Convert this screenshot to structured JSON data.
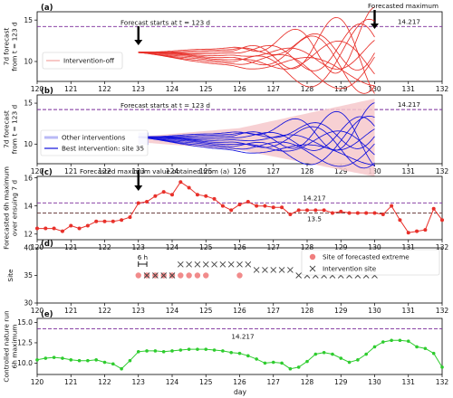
{
  "colors": {
    "red": "#e8302a",
    "red_light": "#f4a3a0",
    "blue": "#1111dd",
    "blue_light": "#b9baf6",
    "pink_band": "#f6c8cb",
    "green": "#2ecc2e",
    "purple_dash": "#7a2a9a",
    "brown_dash": "#5a2a2a",
    "marker_pink": "#f07e7e"
  },
  "x_axis": {
    "label": "day",
    "xlim": [
      120,
      132
    ],
    "ticks": [
      "120",
      "121",
      "122",
      "123",
      "124",
      "125",
      "126",
      "127",
      "128",
      "129",
      "130",
      "131",
      "132"
    ]
  },
  "annotations": {
    "forecast_start": "Forecast starts at t = 123 d",
    "forecasted_maximum": "Forecasted maximum",
    "max_value": "14.217",
    "panel_c_title": "Forecasted maximum value obtained from (a)",
    "mean_value": "13.5",
    "six_h": "6 h"
  },
  "chart_data": [
    {
      "panel": "(a)",
      "type": "line",
      "ylabel": "7d forecast from t = 123 d",
      "ylim": [
        7.6,
        16.0
      ],
      "yticks": [
        10,
        15
      ],
      "threshold": 14.217,
      "legend": [
        "Intervention-off"
      ],
      "x_start": 123,
      "x_end": 130,
      "ensemble_count": 10
    },
    {
      "panel": "(b)",
      "type": "line",
      "ylabel": "7d forecast from t = 123 d",
      "ylim": [
        7.6,
        16.0
      ],
      "yticks": [
        10,
        15
      ],
      "threshold": 14.217,
      "legend": [
        "Other interventions",
        "Best intervention: site 35"
      ],
      "x_start": 123,
      "x_end": 130,
      "ensemble_count": 10
    },
    {
      "panel": "(c)",
      "type": "line",
      "ylabel": "Forecasted 6h maximum over ensuing 7 d",
      "ylim": [
        11.6,
        16.1
      ],
      "yticks": [
        12,
        14,
        16
      ],
      "thresholds": [
        14.217,
        13.5
      ],
      "x": [
        120,
        120.25,
        120.5,
        120.75,
        121,
        121.25,
        121.5,
        121.75,
        122,
        122.25,
        122.5,
        122.75,
        123,
        123.25,
        123.5,
        123.75,
        124,
        124.25,
        124.5,
        124.75,
        125,
        125.25,
        125.5,
        125.75,
        126,
        126.25,
        126.5,
        126.75,
        127,
        127.25,
        127.5,
        127.75,
        128,
        128.25,
        128.5,
        128.75,
        129,
        129.25,
        129.5,
        129.75,
        130,
        130.25,
        130.5,
        130.75,
        131,
        131.25,
        131.5,
        131.75,
        132
      ],
      "y": [
        12.4,
        12.4,
        12.4,
        12.2,
        12.6,
        12.4,
        12.6,
        12.9,
        12.9,
        12.9,
        13.0,
        13.2,
        14.2,
        14.3,
        14.7,
        15.0,
        14.8,
        15.7,
        15.3,
        14.8,
        14.7,
        14.5,
        14.0,
        13.7,
        14.1,
        14.3,
        14.0,
        14.0,
        13.9,
        13.9,
        13.4,
        13.7,
        13.7,
        13.7,
        13.7,
        13.5,
        13.6,
        13.5,
        13.5,
        13.5,
        13.5,
        13.4,
        14.0,
        13.0,
        12.1,
        12.2,
        12.3,
        13.8,
        13.0
      ]
    },
    {
      "panel": "(d)",
      "type": "scatter",
      "ylabel": "Site",
      "ylim": [
        30,
        40
      ],
      "yticks": [
        30,
        35,
        40
      ],
      "legend": [
        "Site of forecasted extreme",
        "Intervention site"
      ],
      "extreme_sites": [
        [
          123,
          35
        ],
        [
          123.25,
          35
        ],
        [
          123.5,
          35
        ],
        [
          123.75,
          35
        ],
        [
          124,
          35
        ],
        [
          124.25,
          35
        ],
        [
          124.5,
          35
        ],
        [
          124.75,
          35
        ],
        [
          125,
          35
        ],
        [
          126,
          35
        ]
      ],
      "intervention_sites": [
        [
          123.25,
          35
        ],
        [
          123.5,
          35
        ],
        [
          123.75,
          35
        ],
        [
          124,
          35
        ],
        [
          124.25,
          37
        ],
        [
          124.5,
          37
        ],
        [
          124.75,
          37
        ],
        [
          125,
          37
        ],
        [
          125.25,
          37
        ],
        [
          125.5,
          37
        ],
        [
          125.75,
          37
        ],
        [
          126,
          37
        ],
        [
          126.25,
          37
        ],
        [
          126.5,
          36
        ],
        [
          126.75,
          36
        ],
        [
          127,
          36
        ],
        [
          127.25,
          36
        ],
        [
          127.5,
          36
        ],
        [
          127.75,
          35
        ],
        [
          128,
          35
        ],
        [
          128.25,
          35
        ],
        [
          128.5,
          35
        ],
        [
          128.75,
          35
        ],
        [
          129,
          35
        ],
        [
          129.25,
          35
        ],
        [
          129.5,
          35
        ],
        [
          129.75,
          35
        ],
        [
          130,
          35
        ]
      ]
    },
    {
      "panel": "(e)",
      "type": "line",
      "ylabel": "Controlled nature run 6h maximum",
      "ylim": [
        8.6,
        15.5
      ],
      "yticks": [
        "10.0",
        "12.5",
        "15.0"
      ],
      "threshold": 14.217,
      "x": [
        120,
        120.25,
        120.5,
        120.75,
        121,
        121.25,
        121.5,
        121.75,
        122,
        122.25,
        122.5,
        122.75,
        123,
        123.25,
        123.5,
        123.75,
        124,
        124.25,
        124.5,
        124.75,
        125,
        125.25,
        125.5,
        125.75,
        126,
        126.25,
        126.5,
        126.75,
        127,
        127.25,
        127.5,
        127.75,
        128,
        128.25,
        128.5,
        128.75,
        129,
        129.25,
        129.5,
        129.75,
        130,
        130.25,
        130.5,
        130.75,
        131,
        131.25,
        131.5,
        131.75,
        132
      ],
      "y": [
        10.4,
        10.6,
        10.7,
        10.6,
        10.4,
        10.3,
        10.3,
        10.4,
        10.1,
        9.9,
        9.3,
        10.3,
        11.4,
        11.5,
        11.5,
        11.4,
        11.5,
        11.6,
        11.7,
        11.7,
        11.7,
        11.6,
        11.5,
        11.3,
        11.2,
        10.9,
        10.5,
        10.0,
        10.1,
        10.0,
        9.3,
        9.5,
        10.2,
        11.1,
        11.3,
        11.1,
        10.6,
        10.1,
        10.4,
        11.1,
        12.0,
        12.6,
        12.8,
        12.8,
        12.7,
        12.0,
        11.8,
        11.2,
        9.5
      ]
    }
  ]
}
